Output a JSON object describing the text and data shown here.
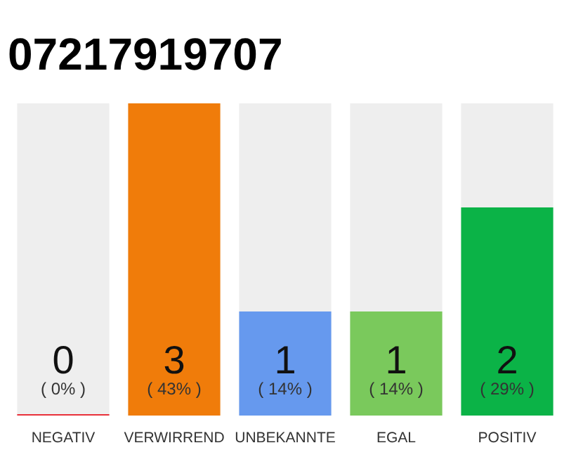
{
  "chart_data": {
    "type": "bar",
    "title": "07217919707",
    "categories": [
      "NEGATIV",
      "VERWIRREND",
      "UNBEKANNTE",
      "EGAL",
      "POSITIV"
    ],
    "values": [
      0,
      3,
      1,
      1,
      2
    ],
    "colors": [
      "#e8303a",
      "#f07c0a",
      "#6699ee",
      "#7ac95c",
      "#0bb347"
    ],
    "data_labels": true,
    "grid": false,
    "annotations": [
      {
        "text": "( 0% )",
        "x": "NEGATIV",
        "y": 0
      },
      {
        "text": "( 43% )",
        "x": "VERWIRREND",
        "y": 0
      },
      {
        "text": "( 14% )",
        "x": "UNBEKANNTE",
        "y": 0
      },
      {
        "text": "( 14% )",
        "x": "EGAL",
        "y": 0
      },
      {
        "text": "( 29% )",
        "x": "POSITIV",
        "y": 0
      }
    ]
  }
}
